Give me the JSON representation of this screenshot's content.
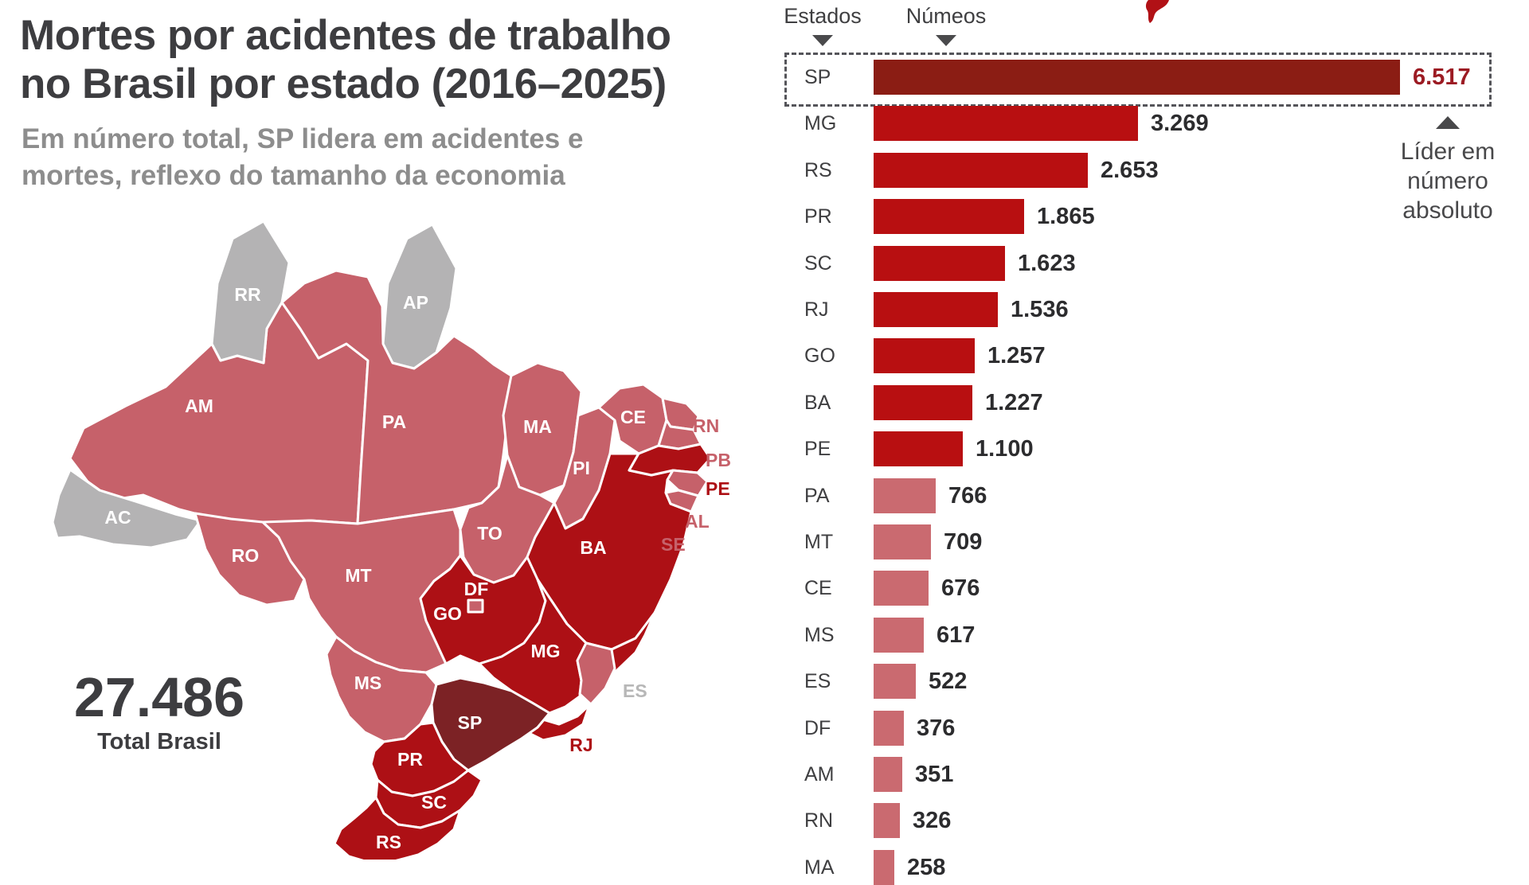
{
  "title": {
    "line1": "Mortes por acidentes de trabalho",
    "line2": "no Brasil por estado (2016–2025)"
  },
  "subtitle": {
    "line1": "Em número total, SP lidera em acidentes e",
    "line2": "mortes, reflexo do tamanho da economia"
  },
  "total": {
    "value": "27.486",
    "label": "Total Brasil"
  },
  "table_header": {
    "estados": "Estados",
    "numeos": "Númeos"
  },
  "leader_note": {
    "line1": "Líder em",
    "line2": "número",
    "line3": "absoluto"
  },
  "chart_data": {
    "type": "bar",
    "orientation": "horizontal",
    "title": "Mortes por acidentes de trabalho no Brasil por estado (2016–2025)",
    "categories": [
      "SP",
      "MG",
      "RS",
      "PR",
      "SC",
      "RJ",
      "GO",
      "BA",
      "PE",
      "PA",
      "MT",
      "CE",
      "MS",
      "ES",
      "DF",
      "AM",
      "RN",
      "MA"
    ],
    "values": [
      6517,
      3269,
      2653,
      1865,
      1623,
      1536,
      1257,
      1227,
      1100,
      766,
      709,
      676,
      617,
      522,
      376,
      351,
      326,
      258
    ],
    "display_values": [
      "6.517",
      "3.269",
      "2.653",
      "1.865",
      "1.623",
      "1.536",
      "1.257",
      "1.227",
      "1.100",
      "766",
      "709",
      "676",
      "617",
      "522",
      "376",
      "351",
      "326",
      "258"
    ],
    "highlighted_category": "SP",
    "total_brasil": 27486,
    "xlim": [
      0,
      6517
    ],
    "legend_position": "none",
    "grid": false
  },
  "map": {
    "states": [
      {
        "id": "AM",
        "label": "AM",
        "fill": "pink",
        "placement": "inside"
      },
      {
        "id": "RR",
        "label": "RR",
        "fill": "gray",
        "placement": "inside"
      },
      {
        "id": "AP",
        "label": "AP",
        "fill": "gray",
        "placement": "inside"
      },
      {
        "id": "AC",
        "label": "AC",
        "fill": "gray",
        "placement": "inside"
      },
      {
        "id": "PA",
        "label": "PA",
        "fill": "pink",
        "placement": "inside"
      },
      {
        "id": "MA",
        "label": "MA",
        "fill": "pink",
        "placement": "inside"
      },
      {
        "id": "PI",
        "label": "PI",
        "fill": "pink",
        "placement": "inside"
      },
      {
        "id": "CE",
        "label": "CE",
        "fill": "pink",
        "placement": "inside"
      },
      {
        "id": "RN",
        "label": "RN",
        "fill": "pink",
        "placement": "outside",
        "label_color": "pink"
      },
      {
        "id": "PB",
        "label": "PB",
        "fill": "pink",
        "placement": "outside",
        "label_color": "pink"
      },
      {
        "id": "TO",
        "label": "TO",
        "fill": "pink",
        "placement": "inside"
      },
      {
        "id": "RO",
        "label": "RO",
        "fill": "pink",
        "placement": "inside"
      },
      {
        "id": "MT",
        "label": "MT",
        "fill": "pink",
        "placement": "inside"
      },
      {
        "id": "MS",
        "label": "MS",
        "fill": "pink",
        "placement": "inside"
      },
      {
        "id": "BA",
        "label": "BA",
        "fill": "dark",
        "placement": "inside"
      },
      {
        "id": "PE",
        "label": "PE",
        "fill": "dark",
        "placement": "outside",
        "label_color": "dark"
      },
      {
        "id": "AL",
        "label": "AL",
        "fill": "pink",
        "placement": "outside",
        "label_color": "pink"
      },
      {
        "id": "SE",
        "label": "SE",
        "fill": "pink",
        "placement": "outside",
        "label_color": "pink"
      },
      {
        "id": "GO",
        "label": "GO",
        "fill": "dark",
        "placement": "inside"
      },
      {
        "id": "MG",
        "label": "MG",
        "fill": "dark",
        "placement": "inside"
      },
      {
        "id": "ES",
        "label": "ES",
        "fill": "pink",
        "placement": "outside",
        "label_color": "gray"
      },
      {
        "id": "RJ",
        "label": "RJ",
        "fill": "dark",
        "placement": "outside",
        "label_color": "dark"
      },
      {
        "id": "SP",
        "label": "SP",
        "fill": "darkest",
        "placement": "inside"
      },
      {
        "id": "PR",
        "label": "PR",
        "fill": "dark",
        "placement": "inside"
      },
      {
        "id": "SC",
        "label": "SC",
        "fill": "dark",
        "placement": "inside"
      },
      {
        "id": "RS",
        "label": "RS",
        "fill": "dark",
        "placement": "inside"
      },
      {
        "id": "DF",
        "label": "DF",
        "fill": "pink",
        "placement": "inside"
      }
    ]
  },
  "colors": {
    "bar_red": "#b80f11",
    "bar_pink": "#ca6a70",
    "bar_darkest": "#8b1d14",
    "value_highlight": "#9c1b23",
    "map_pink": "#c6616a",
    "map_dark": "#ad1015",
    "map_darkest": "#7c2225",
    "map_gray": "#b4b3b4",
    "map_label_outside_gray": "#b7b7b7",
    "text_dark": "#3d3d40",
    "text_gray": "#8d8d8d",
    "accent_red": "#b11116"
  }
}
